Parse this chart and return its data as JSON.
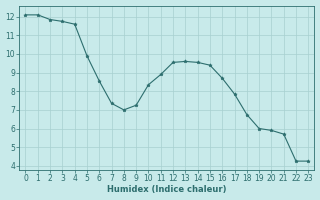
{
  "x": [
    0,
    1,
    2,
    3,
    4,
    5,
    6,
    7,
    8,
    9,
    10,
    11,
    12,
    13,
    14,
    15,
    16,
    17,
    18,
    19,
    20,
    21,
    22,
    23
  ],
  "y": [
    12.1,
    12.1,
    11.85,
    11.75,
    11.6,
    9.9,
    8.55,
    7.35,
    7.0,
    7.25,
    8.35,
    8.9,
    9.55,
    9.6,
    9.55,
    9.4,
    8.7,
    7.85,
    6.75,
    6.0,
    5.9,
    5.7,
    4.25,
    4.25
  ],
  "line_color": "#2d6e6e",
  "marker": "*",
  "marker_color": "#2d6e6e",
  "bg_color": "#c8eaea",
  "grid_color": "#a8d0d0",
  "tick_color": "#2d6e6e",
  "xlabel": "Humidex (Indice chaleur)",
  "ylim": [
    3.8,
    12.6
  ],
  "xlim": [
    -0.5,
    23.5
  ],
  "yticks": [
    4,
    5,
    6,
    7,
    8,
    9,
    10,
    11,
    12
  ],
  "xticks": [
    0,
    1,
    2,
    3,
    4,
    5,
    6,
    7,
    8,
    9,
    10,
    11,
    12,
    13,
    14,
    15,
    16,
    17,
    18,
    19,
    20,
    21,
    22,
    23
  ],
  "label_fontsize": 6,
  "tick_fontsize": 5.5
}
